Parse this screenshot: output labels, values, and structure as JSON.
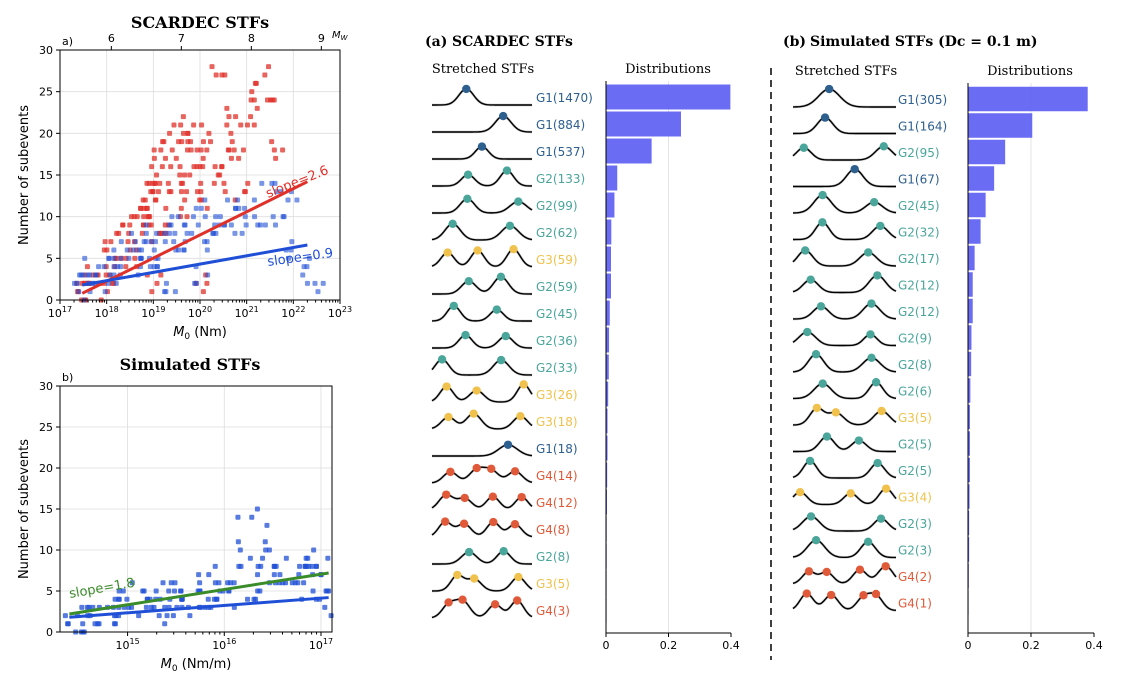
{
  "colors": {
    "red": "#e0302a",
    "blue": "#1f4fd6",
    "green": "#3a8c2a",
    "bar": "#5a5cf2",
    "G1": "#2d5f8f",
    "G2": "#4aa59a",
    "G3": "#f0c24d",
    "G4": "#e05a3a"
  },
  "chart_data": [
    {
      "panel": "a)",
      "type": "scatter",
      "title": "SCARDEC STFs",
      "xlabel": "M0 (Nm)",
      "ylabel": "Number of subevents",
      "top_axis_label": "Mw",
      "xscale": "log",
      "xlim": [
        "1e17",
        "1e23"
      ],
      "ylim": [
        0,
        30
      ],
      "x_ticks": [
        "10^17",
        "10^18",
        "10^19",
        "10^20",
        "10^21",
        "10^22",
        "10^23"
      ],
      "top_ticks": [
        "6",
        "7",
        "8",
        "9"
      ],
      "y_ticks": [
        "0",
        "5",
        "10",
        "15",
        "20",
        "25",
        "30"
      ],
      "grid": true,
      "series": [
        {
          "color": "red",
          "description_points": [
            [
              3e+17,
              1
            ],
            [
              3e+17,
              2
            ],
            [
              4e+17,
              3
            ],
            [
              5e+17,
              2
            ],
            [
              8e+17,
              4
            ],
            [
              1e+18,
              3
            ],
            [
              1e+18,
              6
            ],
            [
              2e+18,
              5
            ],
            [
              2e+18,
              8
            ],
            [
              3e+18,
              4
            ],
            [
              3e+18,
              10
            ],
            [
              4e+18,
              7
            ],
            [
              5e+18,
              12
            ],
            [
              6e+18,
              9
            ],
            [
              7e+18,
              11
            ],
            [
              8e+18,
              13
            ],
            [
              9e+18,
              10
            ],
            [
              1e+19,
              14
            ],
            [
              1e+19,
              8
            ],
            [
              1.2e+19,
              15
            ],
            [
              1.5e+19,
              17
            ],
            [
              1.6e+19,
              12
            ],
            [
              2e+19,
              18
            ],
            [
              2e+19,
              9
            ],
            [
              2.5e+19,
              16
            ],
            [
              3e+19,
              19
            ],
            [
              3e+19,
              13
            ],
            [
              4e+19,
              21
            ],
            [
              4e+19,
              11
            ],
            [
              5e+19,
              20
            ],
            [
              6e+19,
              15
            ],
            [
              7e+19,
              14
            ],
            [
              8e+19,
              18
            ],
            [
              1e+20,
              17
            ],
            [
              1e+20,
              12
            ],
            [
              1.5e+20,
              20
            ],
            [
              2e+20,
              16
            ],
            [
              2.5e+20,
              27
            ],
            [
              3e+20,
              14
            ],
            [
              4e+20,
              22
            ],
            [
              5e+20,
              19
            ],
            [
              6e+20,
              17
            ],
            [
              8e+20,
              13
            ],
            [
              1e+21,
              21
            ],
            [
              1.5e+21,
              24
            ],
            [
              2e+21,
              27
            ],
            [
              3e+21,
              24
            ],
            [
              5e+21,
              18
            ],
            [
              1e+20,
              2
            ],
            [
              1e+19,
              2
            ],
            [
              1e+18,
              1
            ]
          ]
        },
        {
          "color": "blue",
          "description_points": [
            [
              3e+17,
              1
            ],
            [
              3e+17,
              3
            ],
            [
              4e+17,
              2
            ],
            [
              5e+17,
              4
            ],
            [
              8e+17,
              2
            ],
            [
              1e+18,
              5
            ],
            [
              1.5e+18,
              3
            ],
            [
              2e+18,
              4
            ],
            [
              3e+18,
              6
            ],
            [
              4e+18,
              5
            ],
            [
              5e+18,
              7
            ],
            [
              7e+18,
              4
            ],
            [
              8e+18,
              6
            ],
            [
              1e+19,
              8
            ],
            [
              1.5e+19,
              5
            ],
            [
              2e+19,
              7
            ],
            [
              3e+19,
              9
            ],
            [
              4e+19,
              6
            ],
            [
              5e+19,
              10
            ],
            [
              7e+19,
              8
            ],
            [
              1e+20,
              11
            ],
            [
              1.5e+20,
              7
            ],
            [
              2e+20,
              9
            ],
            [
              3e+20,
              10
            ],
            [
              5e+20,
              12
            ],
            [
              7e+20,
              8
            ],
            [
              1e+21,
              11
            ],
            [
              2e+21,
              9
            ],
            [
              3e+21,
              13
            ],
            [
              5e+21,
              10
            ],
            [
              8e+21,
              12
            ],
            [
              1e+22,
              6
            ],
            [
              2e+22,
              4
            ],
            [
              3e+22,
              2
            ],
            [
              2e+19,
              1
            ],
            [
              1e+20,
              3
            ]
          ]
        }
      ],
      "fits": [
        {
          "label": "slope=2.6",
          "color": "red",
          "slope": 2.6,
          "x0": 3e+17,
          "y0": 0.8,
          "x1": 2e+22,
          "y1": 14.2
        },
        {
          "label": "slope=0.9",
          "color": "blue",
          "slope": 0.9,
          "x0": 3e+17,
          "y0": 1.8,
          "x1": 2e+22,
          "y1": 6.6
        }
      ]
    },
    {
      "panel": "b)",
      "type": "scatter",
      "title": "Simulated STFs",
      "xlabel": "M0 (Nm/m)",
      "ylabel": "Number of subevents",
      "xscale": "log",
      "xlim": [
        "2e14",
        "1.3e17"
      ],
      "ylim": [
        0,
        30
      ],
      "x_ticks": [
        "10^15",
        "10^16",
        "10^17"
      ],
      "y_ticks": [
        "0",
        "5",
        "10",
        "15",
        "20",
        "25",
        "30"
      ],
      "grid": true,
      "series": [
        {
          "color": "blue",
          "description_points": [
            [
              300000000000000.0,
              1
            ],
            [
              300000000000000.0,
              2
            ],
            [
              400000000000000.0,
              1
            ],
            [
              500000000000000.0,
              3
            ],
            [
              600000000000000.0,
              2
            ],
            [
              700000000000000.0,
              4
            ],
            [
              800000000000000.0,
              3
            ],
            [
              1000000000000000.0,
              2
            ],
            [
              1000000000000000.0,
              5
            ],
            [
              1200000000000000.0,
              3
            ],
            [
              1500000000000000.0,
              4
            ],
            [
              2000000000000000.0,
              5
            ],
            [
              2000000000000000.0,
              3
            ],
            [
              2500000000000000.0,
              2
            ],
            [
              3000000000000000.0,
              6
            ],
            [
              3000000000000000.0,
              4
            ],
            [
              4000000000000000.0,
              5
            ],
            [
              5000000000000000.0,
              3
            ],
            [
              6000000000000000.0,
              6
            ],
            [
              7000000000000000.0,
              4
            ],
            [
              8000000000000000.0,
              5
            ],
            [
              1e+16,
              7
            ],
            [
              1e+16,
              3
            ],
            [
              1.2e+16,
              6
            ],
            [
              1.5e+16,
              8
            ],
            [
              1.5e+16,
              4
            ],
            [
              2e+16,
              10
            ],
            [
              2e+16,
              14
            ],
            [
              2.5e+16,
              9
            ],
            [
              3e+16,
              8
            ],
            [
              3e+16,
              5
            ],
            [
              4e+16,
              7
            ],
            [
              5e+16,
              6
            ],
            [
              6e+16,
              9
            ],
            [
              7e+16,
              8
            ],
            [
              8e+16,
              5
            ],
            [
              9e+16,
              7
            ],
            [
              1e+17,
              8
            ],
            [
              1.1e+17,
              3
            ],
            [
              1.1e+17,
              5
            ]
          ]
        }
      ],
      "fits": [
        {
          "label": "slope=1.8",
          "color": "green",
          "slope": 1.8,
          "x0": 250000000000000.0,
          "y0": 2.2,
          "x1": 1.2e+17,
          "y1": 7.2
        },
        {
          "label": "",
          "color": "blue",
          "x0": 250000000000000.0,
          "y0": 1.8,
          "x1": 1.2e+17,
          "y1": 4.2
        }
      ]
    },
    {
      "panel": "(a)",
      "type": "bar",
      "title": "SCARDEC STFs",
      "subtitle_left": "Stretched STFs",
      "subtitle_right": "Distributions",
      "orientation": "horizontal",
      "xlim": [
        0,
        0.4
      ],
      "x_ticks": [
        "0",
        "0.2",
        "0.4"
      ],
      "categories": [
        "G1(1470)",
        "G1(884)",
        "G1(537)",
        "G2(133)",
        "G2(99)",
        "G2(62)",
        "G3(59)",
        "G2(59)",
        "G2(45)",
        "G2(36)",
        "G2(33)",
        "G3(26)",
        "G3(18)",
        "G1(18)",
        "G4(14)",
        "G4(12)",
        "G4(8)",
        "G2(8)",
        "G3(5)",
        "G4(3)"
      ],
      "groups": [
        "G1",
        "G1",
        "G1",
        "G2",
        "G2",
        "G2",
        "G3",
        "G2",
        "G2",
        "G2",
        "G2",
        "G3",
        "G3",
        "G1",
        "G4",
        "G4",
        "G4",
        "G2",
        "G3",
        "G4"
      ],
      "values": [
        0.398,
        0.24,
        0.146,
        0.036,
        0.027,
        0.017,
        0.016,
        0.016,
        0.012,
        0.0098,
        0.0089,
        0.007,
        0.0049,
        0.0049,
        0.0038,
        0.0032,
        0.0022,
        0.0022,
        0.0014,
        0.0008
      ]
    },
    {
      "panel": "(b)",
      "type": "bar",
      "title": "Simulated STFs (Dc = 0.1 m)",
      "subtitle_left": "Stretched STFs",
      "subtitle_right": "Distributions",
      "orientation": "horizontal",
      "xlim": [
        0,
        0.4
      ],
      "x_ticks": [
        "0",
        "0.2",
        "0.4"
      ],
      "categories": [
        "G1(305)",
        "G1(164)",
        "G2(95)",
        "G1(67)",
        "G2(45)",
        "G2(32)",
        "G2(17)",
        "G2(12)",
        "G2(12)",
        "G2(9)",
        "G2(8)",
        "G2(6)",
        "G3(5)",
        "G2(5)",
        "G2(5)",
        "G3(4)",
        "G2(3)",
        "G2(3)",
        "G4(2)",
        "G4(1)"
      ],
      "groups": [
        "G1",
        "G1",
        "G2",
        "G1",
        "G2",
        "G2",
        "G2",
        "G2",
        "G2",
        "G2",
        "G2",
        "G2",
        "G3",
        "G2",
        "G2",
        "G3",
        "G2",
        "G2",
        "G4",
        "G4"
      ],
      "values": [
        0.38,
        0.204,
        0.118,
        0.083,
        0.056,
        0.04,
        0.021,
        0.015,
        0.015,
        0.011,
        0.01,
        0.0075,
        0.0062,
        0.0062,
        0.0062,
        0.005,
        0.0037,
        0.0037,
        0.0025,
        0.0012
      ]
    }
  ]
}
